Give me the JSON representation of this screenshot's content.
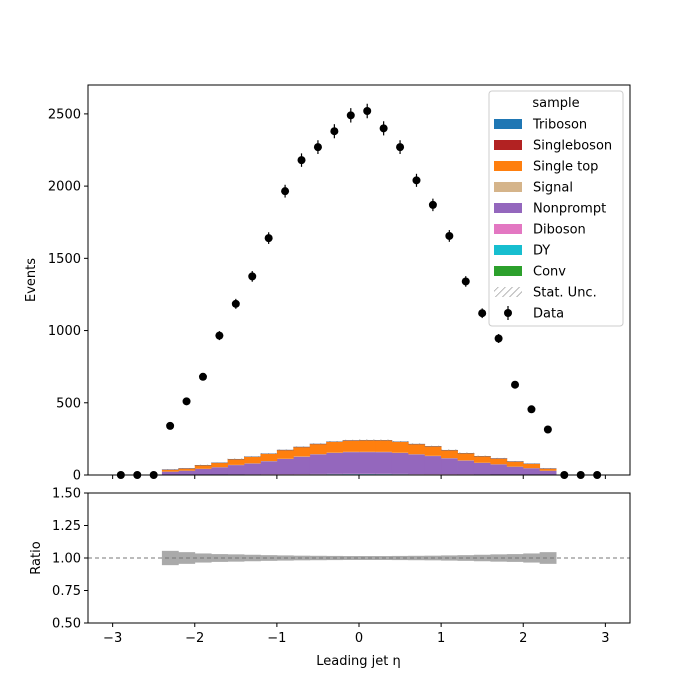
{
  "chart_data": {
    "type": "histogram-stack-ratio",
    "xlabel": "Leading jet  η",
    "top": {
      "ylabel": "Events",
      "ylim": [
        0,
        2700
      ],
      "xlim": [
        -3.3,
        3.3
      ],
      "yticks": [
        0,
        500,
        1000,
        1500,
        2000,
        2500
      ],
      "bin_edges": [
        -3.0,
        -2.8,
        -2.6,
        -2.4,
        -2.2,
        -2.0,
        -1.8,
        -1.6,
        -1.4,
        -1.2,
        -1.0,
        -0.8,
        -0.6,
        -0.4,
        -0.2,
        0.0,
        0.2,
        0.4,
        0.6,
        0.8,
        1.0,
        1.2,
        1.4,
        1.6,
        1.8,
        2.0,
        2.2,
        2.4,
        2.6,
        2.8,
        3.0
      ],
      "stack": [
        {
          "name": "Conv",
          "color": "#2ca02c",
          "values": [
            0,
            0,
            0,
            0.5,
            0.7,
            0.9,
            1.1,
            1.4,
            1.6,
            2.0,
            2.3,
            2.6,
            2.9,
            3.2,
            3.4,
            3.5,
            3.4,
            3.2,
            2.9,
            2.6,
            2.3,
            2.0,
            1.6,
            1.4,
            1.1,
            0.9,
            0.7,
            0.5,
            0,
            0
          ]
        },
        {
          "name": "DY",
          "color": "#17becf",
          "values": [
            0,
            0,
            0,
            0.5,
            0.6,
            0.8,
            1.0,
            1.2,
            1.4,
            1.6,
            1.8,
            2.0,
            2.2,
            2.4,
            2.5,
            2.5,
            2.4,
            2.2,
            2.0,
            1.8,
            1.6,
            1.4,
            1.2,
            1.0,
            0.8,
            0.6,
            0.5,
            0,
            0,
            0
          ]
        },
        {
          "name": "Diboson",
          "color": "#e377c2",
          "values": [
            0,
            0,
            0,
            0.5,
            0.7,
            0.9,
            1.1,
            1.3,
            1.5,
            1.7,
            1.9,
            2.1,
            2.3,
            2.4,
            2.5,
            2.5,
            2.4,
            2.3,
            2.1,
            1.9,
            1.7,
            1.5,
            1.3,
            1.1,
            0.9,
            0.7,
            0.5,
            0,
            0,
            0
          ]
        },
        {
          "name": "Nonprompt",
          "color": "#9467bd",
          "values": [
            0,
            0,
            0,
            22,
            28,
            40,
            50,
            65,
            75,
            90,
            105,
            120,
            135,
            145,
            150,
            150,
            150,
            145,
            135,
            125,
            110,
            95,
            80,
            70,
            55,
            45,
            28,
            0,
            0,
            0
          ]
        },
        {
          "name": "Signal",
          "color": "#d5b48a",
          "values": [
            0,
            0,
            0,
            0.5,
            0.6,
            0.8,
            1.0,
            1.2,
            1.4,
            1.5,
            1.7,
            1.9,
            2.0,
            2.1,
            2.2,
            2.2,
            2.1,
            2.0,
            1.9,
            1.7,
            1.5,
            1.4,
            1.2,
            1.0,
            0.8,
            0.6,
            0.5,
            0,
            0,
            0
          ]
        },
        {
          "name": "Single top",
          "color": "#ff7f0e",
          "values": [
            0,
            0,
            0,
            14,
            15,
            25,
            30,
            40,
            45,
            50,
            60,
            65,
            70,
            75,
            78,
            80,
            80,
            75,
            70,
            65,
            55,
            50,
            45,
            40,
            35,
            30,
            15,
            0,
            0,
            0
          ]
        },
        {
          "name": "Singleboson",
          "color": "#b22222",
          "values": [
            0,
            0,
            0,
            0.3,
            0.4,
            0.5,
            0.6,
            0.7,
            0.8,
            0.9,
            1.0,
            1.1,
            1.2,
            1.2,
            1.3,
            1.3,
            1.2,
            1.2,
            1.1,
            1.0,
            0.9,
            0.8,
            0.7,
            0.6,
            0.5,
            0.4,
            0.3,
            0,
            0,
            0
          ]
        },
        {
          "name": "Triboson",
          "color": "#1f77b4",
          "values": [
            0,
            0,
            0,
            0.1,
            0.1,
            0.1,
            0.2,
            0.2,
            0.2,
            0.3,
            0.3,
            0.3,
            0.3,
            0.4,
            0.4,
            0.4,
            0.4,
            0.3,
            0.3,
            0.3,
            0.3,
            0.2,
            0.2,
            0.2,
            0.1,
            0.1,
            0.1,
            0,
            0,
            0
          ]
        }
      ],
      "data": {
        "name": "Data",
        "x": [
          -2.9,
          -2.7,
          -2.5,
          -2.3,
          -2.1,
          -1.9,
          -1.7,
          -1.5,
          -1.3,
          -1.1,
          -0.9,
          -0.7,
          -0.5,
          -0.3,
          -0.1,
          0.1,
          0.3,
          0.5,
          0.7,
          0.9,
          1.1,
          1.3,
          1.5,
          1.7,
          1.9,
          2.1,
          2.3,
          2.5,
          2.7,
          2.9
        ],
        "y": [
          0,
          0,
          0,
          340,
          510,
          680,
          965,
          1185,
          1375,
          1640,
          1965,
          2180,
          2270,
          2380,
          2490,
          2520,
          2400,
          2270,
          2040,
          1870,
          1655,
          1340,
          1120,
          945,
          625,
          455,
          315,
          0,
          0,
          0
        ]
      },
      "legend": {
        "title": "sample",
        "position": "upper right",
        "entries": [
          "Triboson",
          "Singleboson",
          "Single top",
          "Signal",
          "Nonprompt",
          "Diboson",
          "DY",
          "Conv",
          "Stat. Unc.",
          "Data"
        ]
      }
    },
    "ratio": {
      "ylabel": "Ratio",
      "ylim": [
        0.5,
        1.5
      ],
      "yticks": [
        "0.50",
        "0.75",
        "1.00",
        "1.25",
        "1.50"
      ],
      "xticks": [
        -3,
        -2,
        -1,
        0,
        1,
        2,
        3
      ],
      "reference_line": 1.0,
      "unc_half_width": [
        0,
        0,
        0,
        0.055,
        0.045,
        0.035,
        0.03,
        0.028,
        0.025,
        0.022,
        0.02,
        0.018,
        0.017,
        0.016,
        0.015,
        0.015,
        0.015,
        0.016,
        0.017,
        0.018,
        0.02,
        0.022,
        0.025,
        0.028,
        0.03,
        0.035,
        0.045,
        0,
        0,
        0
      ]
    }
  }
}
